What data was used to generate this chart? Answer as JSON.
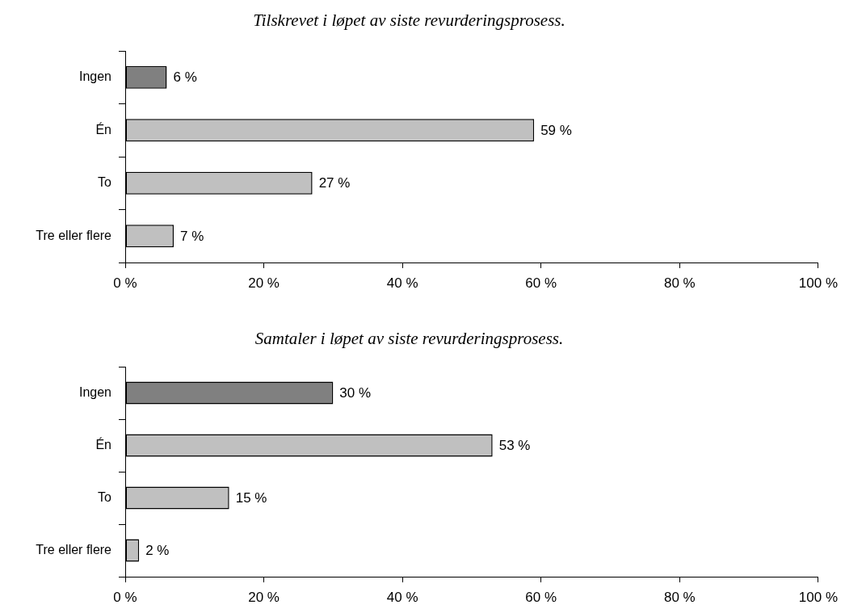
{
  "chart_data": [
    {
      "type": "bar",
      "orientation": "horizontal",
      "title": "Tilskrevet i løpet av siste revurderingsprosess.",
      "categories": [
        "Ingen",
        "Én",
        "To",
        "Tre eller flere"
      ],
      "values": [
        6,
        59,
        27,
        7
      ],
      "colors": [
        "#808080",
        "#c0c0c0",
        "#c0c0c0",
        "#c0c0c0"
      ],
      "value_labels": [
        "6 %",
        "59 %",
        "27 %",
        "7 %"
      ],
      "xlim": [
        0,
        100
      ],
      "xticks": [
        {
          "value": 0,
          "label": "0 %"
        },
        {
          "value": 20,
          "label": "20 %"
        },
        {
          "value": 40,
          "label": "40 %"
        },
        {
          "value": 60,
          "label": "60 %"
        },
        {
          "value": 80,
          "label": "80 %"
        },
        {
          "value": 100,
          "label": "100 %"
        }
      ]
    },
    {
      "type": "bar",
      "orientation": "horizontal",
      "title": "Samtaler i løpet av siste revurderingsprosess.",
      "categories": [
        "Ingen",
        "Én",
        "To",
        "Tre eller flere"
      ],
      "values": [
        30,
        53,
        15,
        2
      ],
      "colors": [
        "#808080",
        "#c0c0c0",
        "#c0c0c0",
        "#c0c0c0"
      ],
      "value_labels": [
        "30 %",
        "53 %",
        "15 %",
        "2 %"
      ],
      "xlim": [
        0,
        100
      ],
      "xticks": [
        {
          "value": 0,
          "label": "0 %"
        },
        {
          "value": 20,
          "label": "20 %"
        },
        {
          "value": 40,
          "label": "40 %"
        },
        {
          "value": 60,
          "label": "60 %"
        },
        {
          "value": 80,
          "label": "80 %"
        },
        {
          "value": 100,
          "label": "100 %"
        }
      ]
    }
  ]
}
